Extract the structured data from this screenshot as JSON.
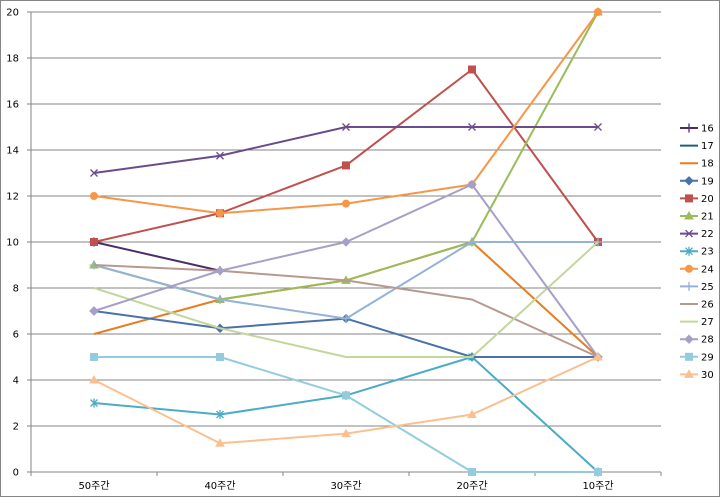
{
  "chart_data": {
    "type": "line",
    "title": "",
    "xlabel": "",
    "ylabel": "",
    "categories": [
      "50주간",
      "40주간",
      "30주간",
      "20주간",
      "10주간"
    ],
    "ylim": [
      0,
      20
    ],
    "yticks": [
      "0",
      "2",
      "4",
      "6",
      "8",
      "10",
      "12",
      "14",
      "16",
      "18",
      "20"
    ],
    "grid": "horizontal",
    "legend_position": "right",
    "series": [
      {
        "name": "16",
        "values": [
          10,
          8.75,
          null,
          null,
          null
        ],
        "color": "#4b2d6b",
        "marker": "plus"
      },
      {
        "name": "17",
        "values": [
          null,
          null,
          null,
          null,
          null
        ],
        "color": "#1f5f7a",
        "marker": "none"
      },
      {
        "name": "18",
        "values": [
          6,
          7.5,
          8.33,
          10,
          5
        ],
        "color": "#e67e22",
        "marker": "none"
      },
      {
        "name": "19",
        "values": [
          7,
          6.25,
          6.67,
          5,
          5
        ],
        "color": "#4a72a8",
        "marker": "diamond"
      },
      {
        "name": "20",
        "values": [
          10,
          11.25,
          13.33,
          17.5,
          10
        ],
        "color": "#c0504d",
        "marker": "square"
      },
      {
        "name": "21",
        "values": [
          9,
          7.5,
          8.33,
          10,
          20
        ],
        "color": "#9bbb59",
        "marker": "triangle"
      },
      {
        "name": "22",
        "values": [
          13,
          13.75,
          15,
          15,
          15
        ],
        "color": "#6a4c8c",
        "marker": "x"
      },
      {
        "name": "23",
        "values": [
          3,
          2.5,
          3.33,
          5,
          0
        ],
        "color": "#4bacc6",
        "marker": "star"
      },
      {
        "name": "24",
        "values": [
          12,
          11.25,
          11.67,
          12.5,
          20
        ],
        "color": "#f79646",
        "marker": "circle"
      },
      {
        "name": "25",
        "values": [
          9,
          7.5,
          6.67,
          10,
          10
        ],
        "color": "#95b3d7",
        "marker": "plus"
      },
      {
        "name": "26",
        "values": [
          9,
          8.75,
          8.33,
          7.5,
          5
        ],
        "color": "#b7998f",
        "marker": "none"
      },
      {
        "name": "27",
        "values": [
          8,
          6.25,
          5,
          5,
          10
        ],
        "color": "#c4d79b",
        "marker": "none"
      },
      {
        "name": "28",
        "values": [
          7,
          8.75,
          10,
          12.5,
          5
        ],
        "color": "#a6a0c8",
        "marker": "diamond"
      },
      {
        "name": "29",
        "values": [
          5,
          5,
          3.33,
          0,
          0
        ],
        "color": "#93cddd",
        "marker": "square"
      },
      {
        "name": "30",
        "values": [
          4,
          1.25,
          1.67,
          2.5,
          5
        ],
        "color": "#fac090",
        "marker": "triangle"
      }
    ]
  }
}
